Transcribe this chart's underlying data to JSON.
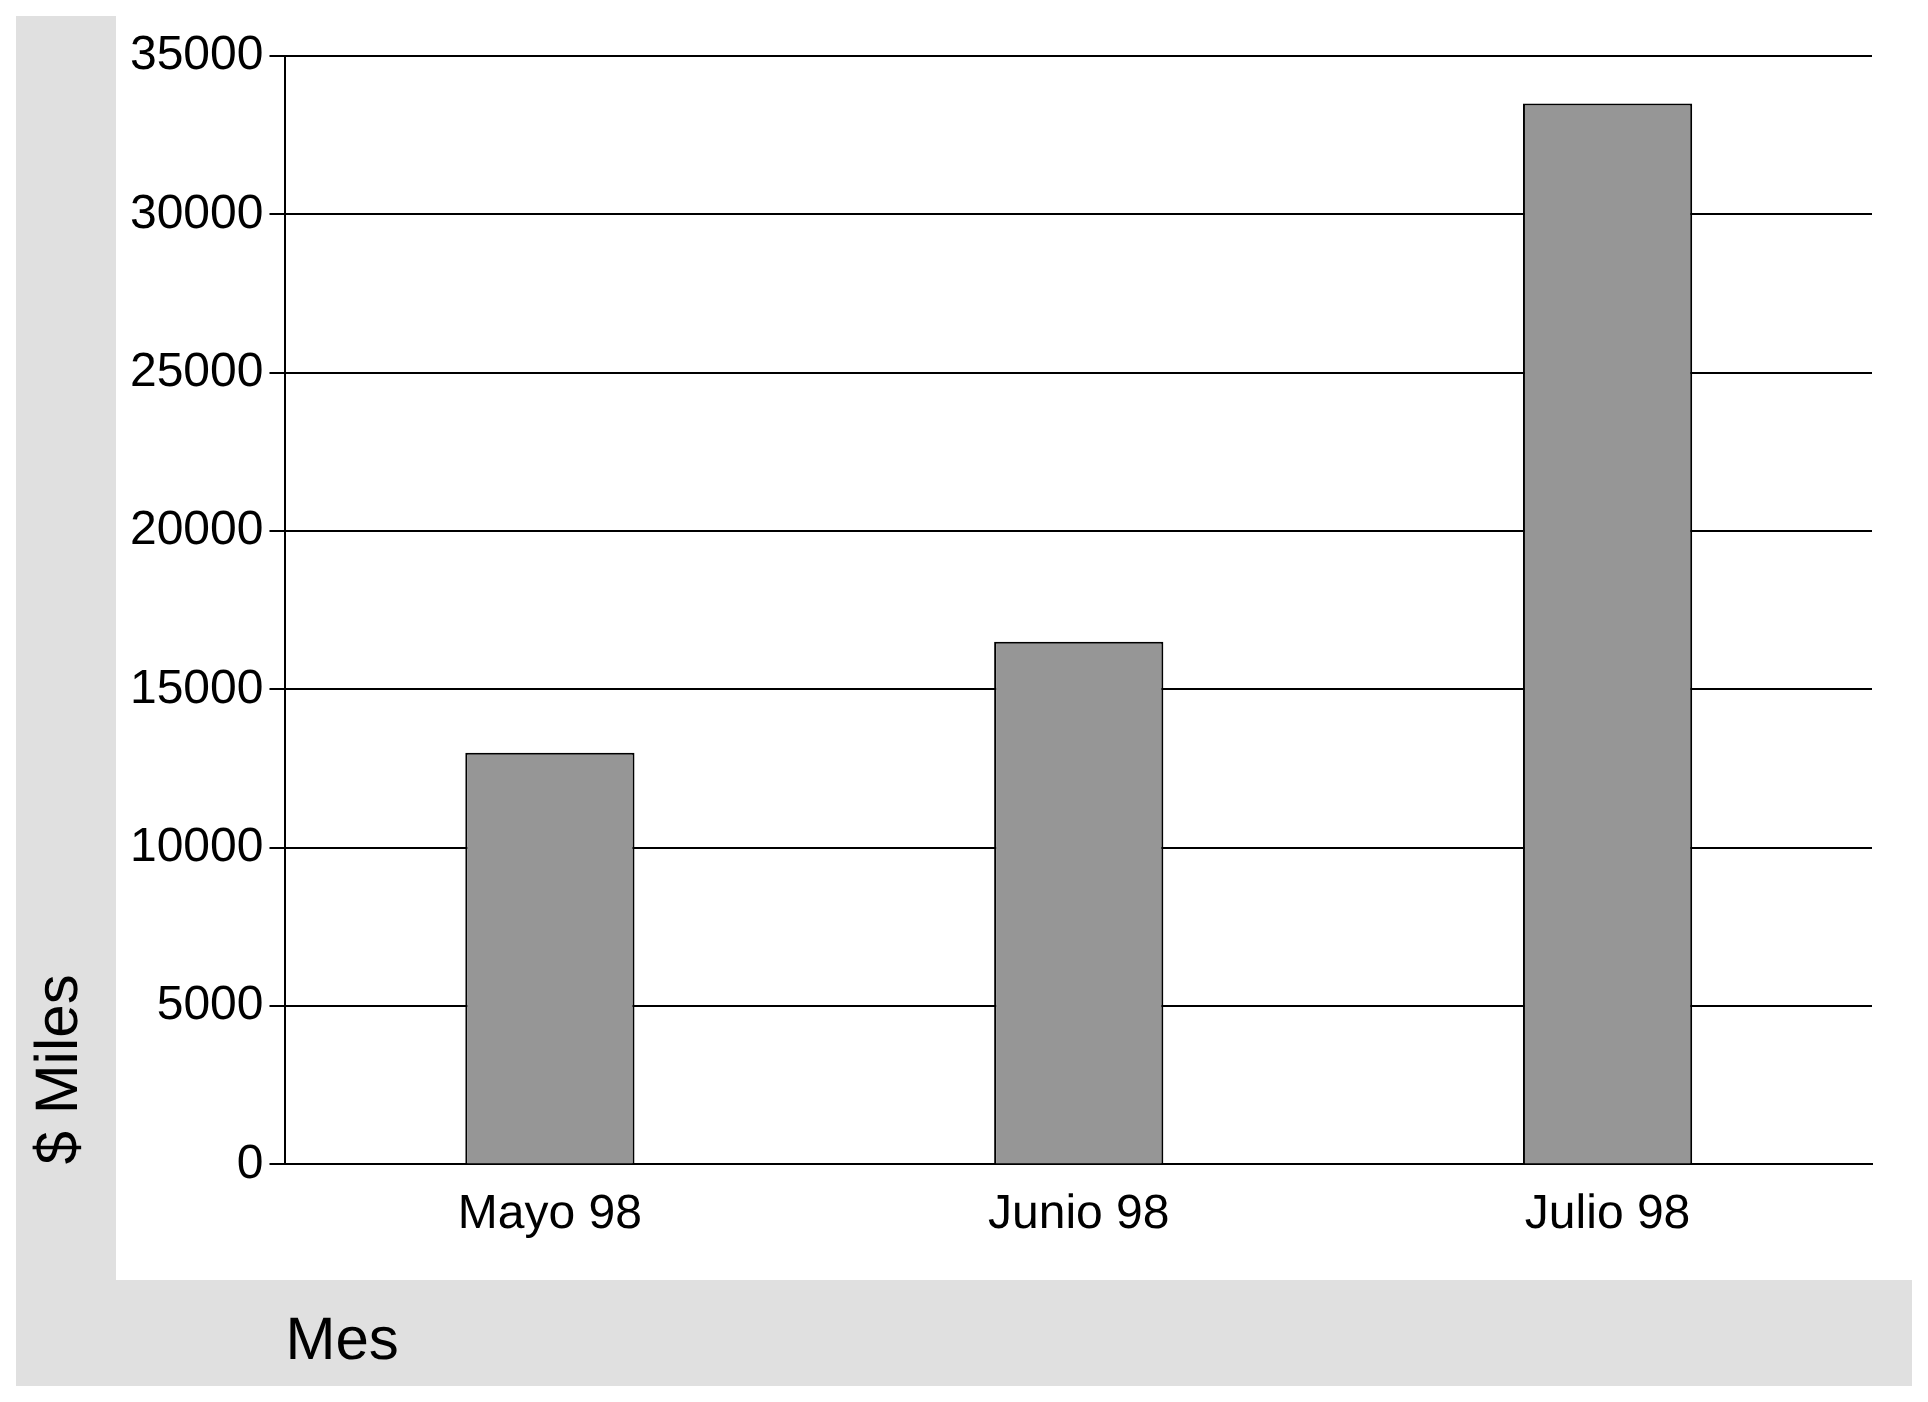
{
  "chart_data": {
    "type": "bar",
    "categories": [
      "Mayo 98",
      "Junio 98",
      "Julio 98"
    ],
    "values": [
      13000,
      16500,
      33500
    ],
    "color": "#969696",
    "xlabel": "Mes",
    "ylabel": "$ Miles",
    "ylim": [
      0,
      35000
    ],
    "yticks": [
      0,
      5000,
      10000,
      15000,
      20000,
      25000,
      30000,
      35000
    ],
    "grid": "y",
    "legend": false
  }
}
